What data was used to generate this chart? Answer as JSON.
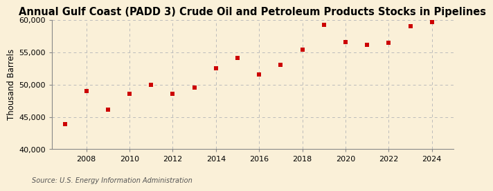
{
  "title": "Annual Gulf Coast (PADD 3) Crude Oil and Petroleum Products Stocks in Pipelines",
  "ylabel": "Thousand Barrels",
  "source": "Source: U.S. Energy Information Administration",
  "years": [
    2007,
    2008,
    2009,
    2010,
    2011,
    2012,
    2013,
    2014,
    2015,
    2016,
    2017,
    2018,
    2019,
    2020,
    2021,
    2022,
    2023,
    2024
  ],
  "values": [
    43900,
    49000,
    46100,
    48600,
    50000,
    48600,
    49500,
    52500,
    54100,
    51600,
    53000,
    55400,
    59200,
    56600,
    56100,
    56400,
    59000,
    59600
  ],
  "marker_color": "#cc0000",
  "background_color": "#faf0d8",
  "grid_color": "#bbbbbb",
  "ylim": [
    40000,
    60000
  ],
  "xlim": [
    2006.4,
    2025.0
  ],
  "yticks": [
    40000,
    45000,
    50000,
    55000,
    60000
  ],
  "xticks": [
    2008,
    2010,
    2012,
    2014,
    2016,
    2018,
    2020,
    2022,
    2024
  ],
  "title_fontsize": 10.5,
  "label_fontsize": 8.5,
  "tick_fontsize": 8,
  "source_fontsize": 7
}
